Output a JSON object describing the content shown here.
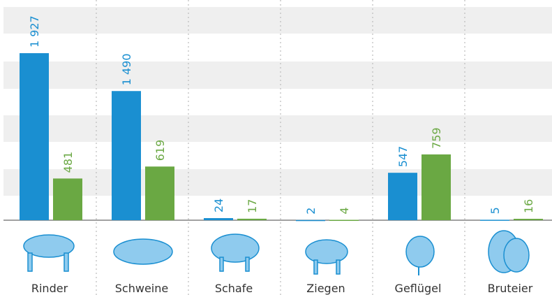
{
  "chart_data": {
    "type": "bar",
    "categories": [
      "Rinder",
      "Schweine",
      "Schafe",
      "Ziegen",
      "Geflügel",
      "Bruteier"
    ],
    "series": [
      {
        "color": "#1a8fd1",
        "values": [
          1927,
          1490,
          24,
          2,
          547,
          5
        ],
        "value_labels": [
          "1 927",
          "1 490",
          "24",
          "2",
          "547",
          "5"
        ]
      },
      {
        "color": "#6aa843",
        "values": [
          481,
          619,
          17,
          4,
          759,
          16
        ]
      }
    ],
    "ylim": [
      0,
      2500
    ]
  }
}
